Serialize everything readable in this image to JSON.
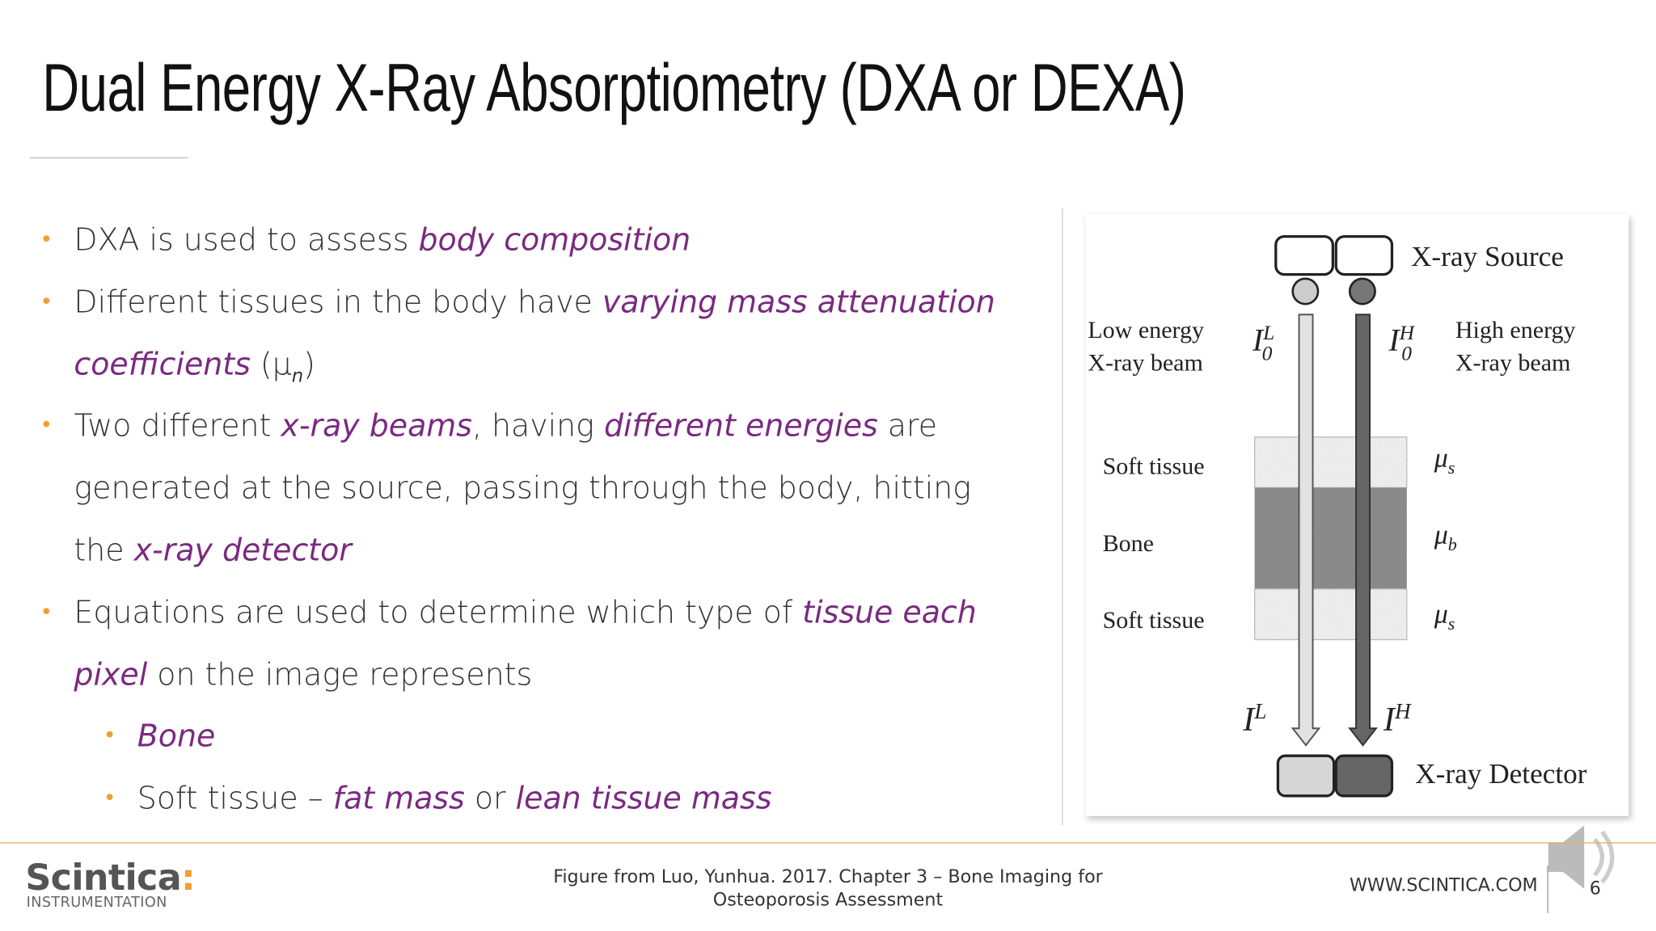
{
  "header": {
    "title": "Dual Energy X-Ray Absorptiometry (DXA or DEXA)"
  },
  "bullets": [
    {
      "level": 1,
      "runs": [
        {
          "text": "DXA is used to assess "
        },
        {
          "text": "body composition",
          "em": true
        }
      ]
    },
    {
      "level": 1,
      "runs": [
        {
          "text": "Different tissues in the body have "
        },
        {
          "text": "varying mass attenuation coefficients",
          "em": true
        },
        {
          "text": " (μ"
        },
        {
          "text": "n",
          "sub": true
        },
        {
          "text": ")"
        }
      ]
    },
    {
      "level": 1,
      "runs": [
        {
          "text": "Two different "
        },
        {
          "text": "x-ray beams",
          "em": true
        },
        {
          "text": ", having "
        },
        {
          "text": "different energies",
          "em": true
        },
        {
          "text": " are generated at the source, passing through the body, hitting the "
        },
        {
          "text": "x-ray detector",
          "em": true
        }
      ]
    },
    {
      "level": 1,
      "runs": [
        {
          "text": "Equations are used to determine which type of "
        },
        {
          "text": "tissue each pixel",
          "em": true
        },
        {
          "text": " on the image represents"
        }
      ]
    },
    {
      "level": 2,
      "runs": [
        {
          "text": "Bone",
          "em": true
        }
      ]
    },
    {
      "level": 2,
      "runs": [
        {
          "text": "Soft tissue – "
        },
        {
          "text": "fat mass",
          "em": true
        },
        {
          "text": " or "
        },
        {
          "text": "lean tissue mass",
          "em": true
        }
      ]
    }
  ],
  "figure": {
    "source_label": "X-ray Source",
    "detector_label": "X-ray Detector",
    "low_label": [
      "Low energy",
      "X-ray beam"
    ],
    "high_label": [
      "High energy",
      "X-ray beam"
    ],
    "incident": [
      {
        "base": "I",
        "sub": "0",
        "sup": "L"
      },
      {
        "base": "I",
        "sub": "0",
        "sup": "H"
      }
    ],
    "transmitted": [
      {
        "base": "I",
        "sup": "L"
      },
      {
        "base": "I",
        "sup": "H"
      }
    ],
    "layers": [
      "Soft tissue",
      "Bone",
      "Soft tissue"
    ],
    "coefficients": [
      {
        "base": "μ",
        "sub": "s"
      },
      {
        "base": "μ",
        "sub": "b"
      },
      {
        "base": "μ",
        "sub": "s"
      }
    ]
  },
  "footer": {
    "logo": "Scintica",
    "logo_mark": ":",
    "logo_sub": "INSTRUMENTATION",
    "citation": [
      "Figure from Luo, Yunhua. 2017. Chapter 3 – Bone Imaging for",
      "Osteoporosis Assessment"
    ],
    "website": "WWW.SCINTICA.COM",
    "page": 6
  }
}
